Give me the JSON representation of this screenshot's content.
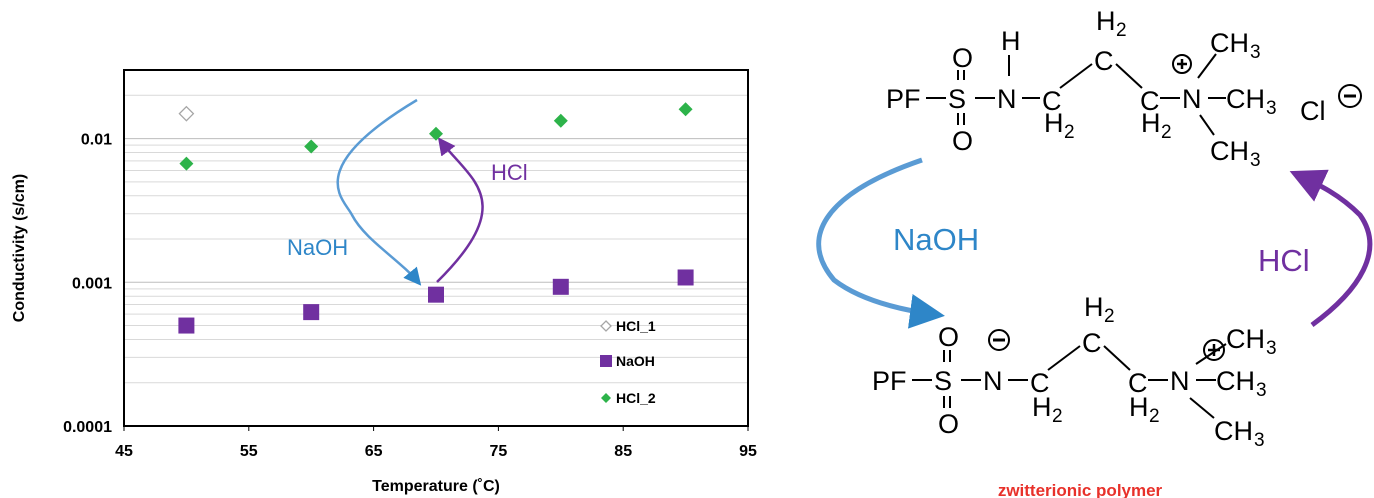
{
  "chart_data": {
    "type": "scatter",
    "xlabel": "Temperature (˚C)",
    "ylabel": "Conductivity (s/cm)",
    "xlim": [
      45,
      95
    ],
    "ylim": [
      0.0001,
      0.03
    ],
    "yscale": "log",
    "grid": "horizontal minor",
    "legend_position": "lower-right",
    "x_ticks": [
      "45",
      "55",
      "65",
      "75",
      "85",
      "95"
    ],
    "y_ticks": [
      "0.0001",
      "0.001",
      "0.01"
    ],
    "series": [
      {
        "name": "HCl_1",
        "marker": "open-diamond",
        "color": "#a6a6a6",
        "points": [
          {
            "x": 50,
            "y": 0.0149
          }
        ]
      },
      {
        "name": "NaOH",
        "marker": "square",
        "color": "#7030a0",
        "points": [
          {
            "x": 50,
            "y": 0.0005
          },
          {
            "x": 60,
            "y": 0.00062
          },
          {
            "x": 70,
            "y": 0.00082
          },
          {
            "x": 80,
            "y": 0.00093
          },
          {
            "x": 90,
            "y": 0.00108
          }
        ]
      },
      {
        "name": "HCl_2",
        "marker": "diamond",
        "color": "#2db34a",
        "points": [
          {
            "x": 50,
            "y": 0.0067
          },
          {
            "x": 60,
            "y": 0.0088
          },
          {
            "x": 70,
            "y": 0.0108
          },
          {
            "x": 80,
            "y": 0.0133
          },
          {
            "x": 90,
            "y": 0.016
          }
        ]
      }
    ],
    "annotations": [
      {
        "text": "NaOH",
        "color": "#2e86c8"
      },
      {
        "text": "HCl",
        "color": "#7030a0"
      }
    ]
  },
  "scheme": {
    "pf": "PF",
    "s": "S",
    "n": "N",
    "o": "O",
    "h": "H",
    "c": "C",
    "h2": "H",
    "sub2": "2",
    "ch": "CH",
    "sub3": "3",
    "cl": "Cl",
    "naoh_label": "NaOH",
    "hcl_label": "HCl",
    "caption": "zwitterionic polymer",
    "colors": {
      "naoh": "#2e86c8",
      "hcl": "#7030a0",
      "caption": "#e8312a"
    }
  }
}
